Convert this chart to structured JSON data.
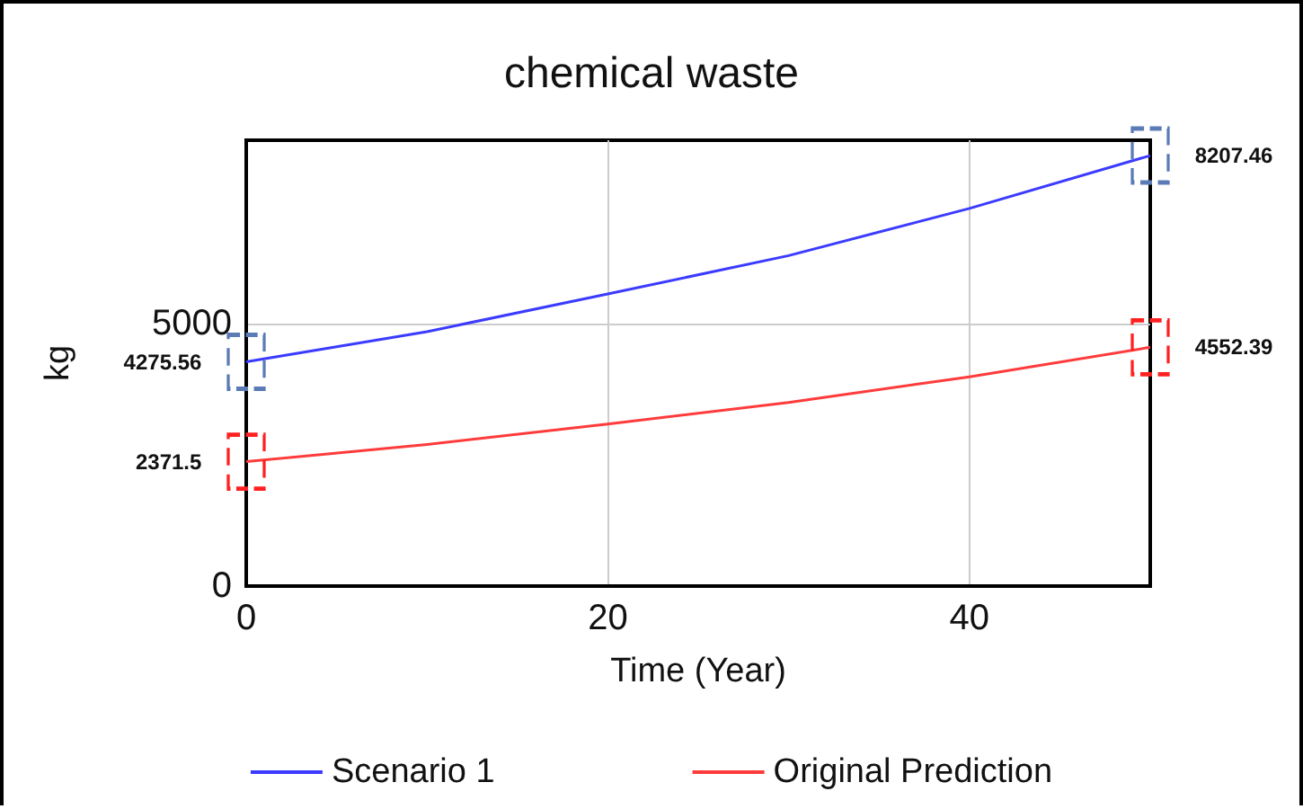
{
  "chart_data": {
    "type": "line",
    "title": "chemical waste",
    "xlabel": "Time (Year)",
    "ylabel": "kg",
    "x": [
      0,
      10,
      20,
      30,
      40,
      50
    ],
    "series": [
      {
        "name": "Scenario 1",
        "color": "#3b3bff",
        "values": [
          4275.56,
          4850,
          5570,
          6300,
          7200,
          8207.46
        ],
        "value_labels": [
          "4275.56",
          null,
          null,
          null,
          null,
          "8207.46"
        ]
      },
      {
        "name": "Original Prediction",
        "color": "#ff3b3b",
        "values": [
          2371.5,
          2700,
          3090,
          3500,
          3990,
          4552.39
        ],
        "value_labels": [
          "2371.5",
          null,
          null,
          null,
          null,
          "4552.39"
        ]
      }
    ],
    "xlim": [
      0,
      50
    ],
    "xticks": [
      0,
      20,
      40
    ],
    "ylim": [
      0,
      8500
    ],
    "yticks": [
      0,
      5000
    ],
    "grid": true,
    "legend": "bottom"
  }
}
